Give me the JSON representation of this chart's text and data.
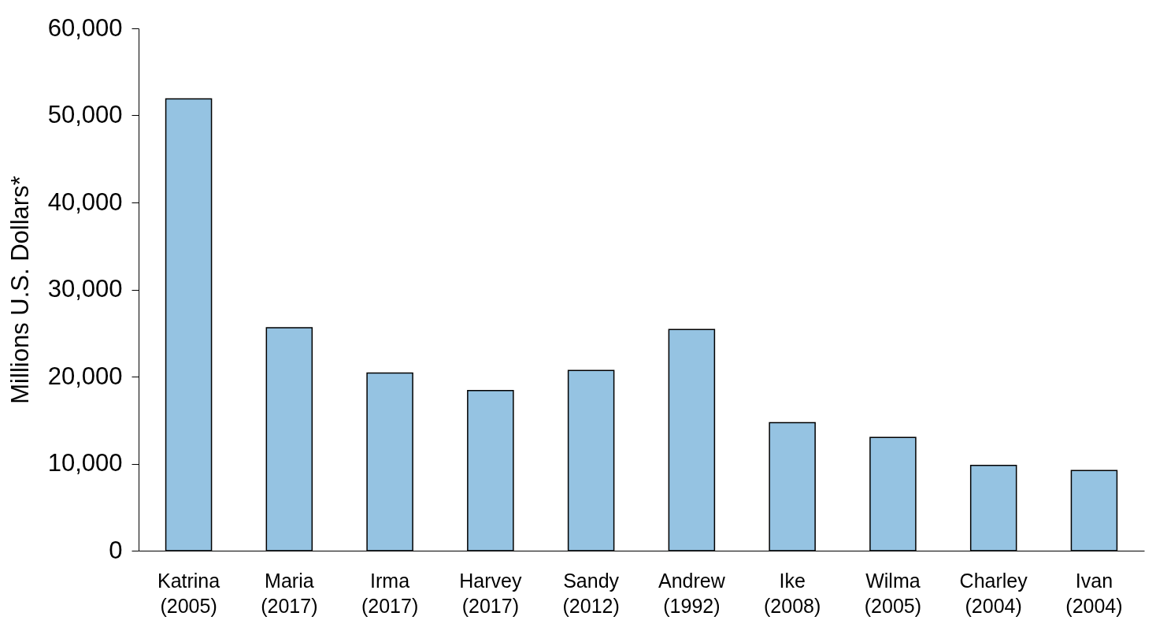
{
  "chart_data": {
    "type": "bar",
    "ylabel": "Millions U.S. Dollars*",
    "categories": [
      "Katrina (2005)",
      "Maria (2017)",
      "Irma (2017)",
      "Harvey (2017)",
      "Sandy (2012)",
      "Andrew (1992)",
      "Ike (2008)",
      "Wilma (2005)",
      "Charley (2004)",
      "Ivan (2004)"
    ],
    "values": [
      51900,
      25600,
      20400,
      18400,
      20700,
      25400,
      14700,
      13000,
      9800,
      9200
    ],
    "color": "#95c3e2",
    "ylim": [
      0,
      60000
    ],
    "yticks": [
      {
        "value": 0,
        "label": "0"
      },
      {
        "value": 10000,
        "label": "10,000"
      },
      {
        "value": 20000,
        "label": "20,000"
      },
      {
        "value": 30000,
        "label": "30,000"
      },
      {
        "value": 40000,
        "label": "40,000"
      },
      {
        "value": 50000,
        "label": "50,000"
      },
      {
        "value": 60000,
        "label": "60,000"
      }
    ],
    "grid": false
  }
}
